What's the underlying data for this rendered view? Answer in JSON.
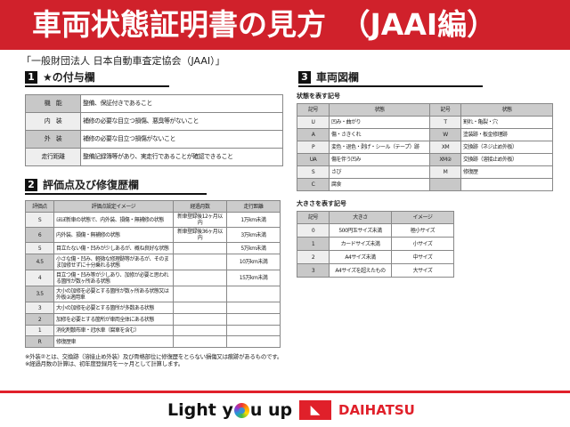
{
  "title": "車両状態証明書の見方　（JAAI編）",
  "subtitle": "「一般財団法人 日本自動車査定協会（JAAI）」",
  "section1": {
    "num": "1",
    "title": "★の付与欄",
    "rows": [
      [
        "機　能",
        "整備、保証付きであること"
      ],
      [
        "内　装",
        "補修の必要な目立つ損傷、悪臭等がないこと"
      ],
      [
        "外　装",
        "補修の必要な目立つ損傷がないこと"
      ],
      [
        "走行距離",
        "整備記録簿等があり、実走行であることが確認できること"
      ]
    ]
  },
  "section2": {
    "num": "2",
    "title": "評価点及び修復歴欄",
    "headers": [
      "評価点",
      "評価点設定イメージ",
      "経過月数",
      "走行距離"
    ],
    "rows": [
      [
        "S",
        "ほぼ新車の状態で、内外装、損傷・無補修の状態",
        "新車登録後12ヶ月以内",
        "1万km未満"
      ],
      [
        "6",
        "内外装、損傷・無補修の状態",
        "新車登録後36ヶ月以内",
        "3万km未満"
      ],
      [
        "5",
        "目立たない傷・凹みが少しあるが、概ね良好な状態",
        "",
        "5万km未満"
      ],
      [
        "4.5",
        "小さな傷・凹み、軽微な修理跡等があるが、そのまま加修せずに十分乗れる状態",
        "",
        "10万km未満"
      ],
      [
        "4",
        "目立つ傷・凹み等が少しあり、加修が必要と思われる箇所が数ヶ所ある状態",
        "",
        "15万km未満"
      ],
      [
        "3.5",
        "大小の加修を必要とする箇所が数ヶ所ある状態又は外板②適用車",
        "",
        ""
      ],
      [
        "3",
        "大小の加修を必要とする箇所が多数ある状態",
        "",
        ""
      ],
      [
        "2",
        "加修を必要とする箇所が車両全体にある状態",
        "",
        ""
      ],
      [
        "1",
        "消化剤散布車・冠水車（腐車を含む）",
        "",
        ""
      ],
      [
        "R",
        "修復歴車",
        "",
        ""
      ]
    ]
  },
  "notes": [
    "※外装②とは、交換跡（溶接止め外装）及び骨格部位に修復歴をとらない損傷又は痕跡があるものです。",
    "※経過月数の計算は、初年度登録月を一ヶ月として計算します。"
  ],
  "section3": {
    "num": "3",
    "title": "車両図欄",
    "state_caption": "状態を表す記号",
    "state_headers": [
      "記号",
      "状態",
      "記号",
      "状態"
    ],
    "state_rows": [
      [
        "U",
        "凹み・曲がり",
        "T",
        "割れ・亀裂・穴"
      ],
      [
        "A",
        "傷・さきくれ",
        "W",
        "塗装跡・板金修理跡"
      ],
      [
        "P",
        "変色・退色・剥げ・シール（テープ）跡",
        "XM",
        "交換跡（ネジ止め外板）"
      ],
      [
        "UA",
        "傷を伴う凹み",
        "XM②",
        "交換跡（溶接止め外板）"
      ],
      [
        "S",
        "さび",
        "M",
        "修復歴"
      ],
      [
        "C",
        "腐食",
        "",
        ""
      ]
    ],
    "size_caption": "大きさを表す記号",
    "size_headers": [
      "記号",
      "大きさ",
      "イメージ"
    ],
    "size_rows": [
      [
        "0",
        "500円玉サイズ未満",
        "極小サイズ"
      ],
      [
        "1",
        "カードサイズ未満",
        "小サイズ"
      ],
      [
        "2",
        "A4サイズ未満",
        "中サイズ"
      ],
      [
        "3",
        "A4サイズを超えたもの",
        "大サイズ"
      ]
    ]
  },
  "footer": {
    "slogan_a": "Light y",
    "slogan_b": "u up",
    "brand": "DAIHATSU"
  },
  "colors": {
    "banner": "#d0212b",
    "brand": "#e0202a"
  }
}
